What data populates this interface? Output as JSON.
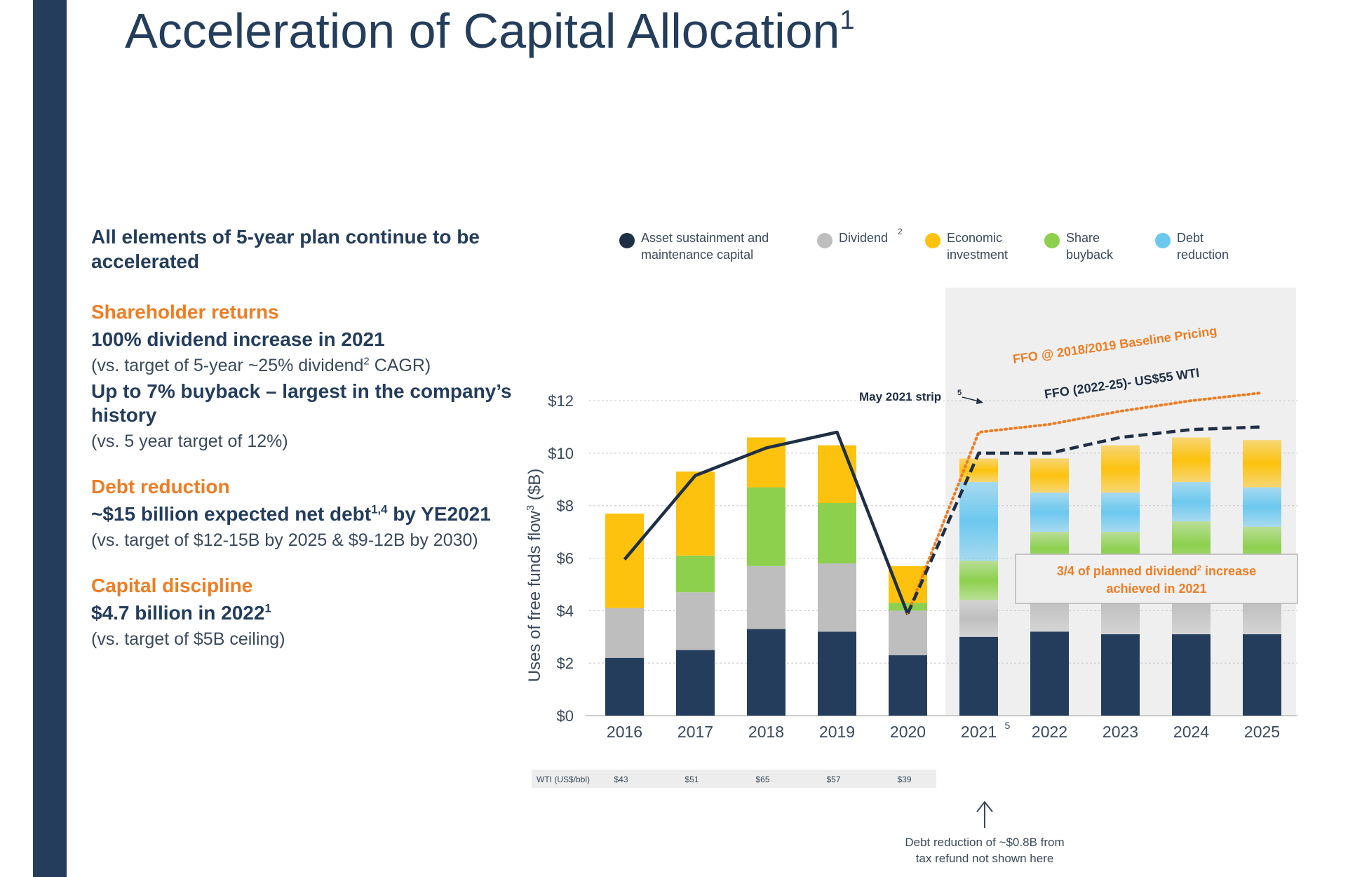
{
  "slide": {
    "title": "Acceleration of Capital Allocation",
    "title_sup": "1"
  },
  "left": {
    "lead": "All elements of 5-year plan continue to be accelerated",
    "sections": [
      {
        "head": "Shareholder returns",
        "lines": [
          {
            "kind": "bold",
            "text": "100% dividend increase in 2021"
          },
          {
            "kind": "note",
            "text": "(vs. target of 5-year ~25% dividend",
            "sup": "2",
            "after": " CAGR)"
          },
          {
            "kind": "bold",
            "text": "Up to 7% buyback – largest in the company’s history"
          },
          {
            "kind": "note",
            "text": "(vs. 5 year target of 12%)"
          }
        ]
      },
      {
        "head": "Debt reduction",
        "lines": [
          {
            "kind": "bold",
            "text": "~$15 billion expected net debt",
            "sup": "1,4",
            "after": " by YE2021"
          },
          {
            "kind": "note",
            "text": "(vs. target of $12-15B by 2025 & $9-12B by 2030)"
          }
        ]
      },
      {
        "head": "Capital discipline",
        "lines": [
          {
            "kind": "bold",
            "text": "$4.7 billion in 2022",
            "sup": "1"
          },
          {
            "kind": "note",
            "text": "(vs. target of $5B ceiling)"
          }
        ]
      }
    ]
  },
  "colors": {
    "navy": "#243d5c",
    "grey": "#bebebe",
    "yellow": "#fdc20e",
    "green": "#8dd04e",
    "blue": "#6cc8ef",
    "orange": "#ee7d24",
    "line": "#1f2f45"
  },
  "chart_data": {
    "type": "bar",
    "stacked": true,
    "ylabel": "Uses of free funds flow",
    "ylabel_sup": "3",
    "ylabel_unit": " ($B)",
    "ylim": [
      0,
      13.5
    ],
    "yticks": [
      0,
      2,
      4,
      6,
      8,
      10,
      12
    ],
    "ytick_labels": [
      "$0",
      "$2",
      "$4",
      "$6",
      "$8",
      "$10",
      "$12"
    ],
    "grid": true,
    "categories": [
      "2016",
      "2017",
      "2018",
      "2019",
      "2020",
      "2021",
      "2022",
      "2023",
      "2024",
      "2025"
    ],
    "category_sups": [
      "",
      "",
      "",
      "",
      "",
      "5",
      "",
      "",
      "",
      ""
    ],
    "forecast_from_index": 5,
    "legend": [
      {
        "key": "navy",
        "label": "Asset sustainment and maintenance capital"
      },
      {
        "key": "grey",
        "label": "Dividend",
        "sup": "2"
      },
      {
        "key": "yellow",
        "label": "Economic investment"
      },
      {
        "key": "green",
        "label": "Share buyback"
      },
      {
        "key": "blue",
        "label": "Debt reduction"
      }
    ],
    "series": [
      {
        "name": "Asset sustainment and maintenance capital",
        "color_key": "navy",
        "values": [
          2.2,
          2.5,
          3.3,
          3.2,
          2.3,
          3.0,
          3.2,
          3.1,
          3.1,
          3.1
        ]
      },
      {
        "name": "Dividend",
        "color_key": "grey",
        "values": [
          1.9,
          2.2,
          2.4,
          2.6,
          1.7,
          1.4,
          2.5,
          2.5,
          2.5,
          2.5
        ]
      },
      {
        "name": "Share buyback",
        "color_key": "green",
        "values": [
          0.0,
          1.4,
          3.0,
          2.3,
          0.3,
          1.5,
          1.3,
          1.4,
          1.8,
          1.6
        ]
      },
      {
        "name": "Debt reduction",
        "color_key": "blue",
        "values": [
          0.0,
          0.0,
          0.0,
          0.0,
          0.0,
          3.0,
          1.5,
          1.5,
          1.5,
          1.5
        ]
      },
      {
        "name": "Economic investment",
        "color_key": "yellow",
        "values": [
          3.6,
          3.2,
          1.9,
          2.2,
          1.4,
          0.9,
          1.3,
          1.8,
          1.7,
          1.8
        ]
      }
    ],
    "line": {
      "x_indices": [
        0,
        1,
        2,
        3,
        4
      ],
      "values": [
        5.95,
        9.15,
        10.2,
        10.8,
        3.85
      ]
    },
    "ffo_baseline": {
      "label": "FFO @ 2018/2019 Baseline Pricing",
      "from_index": 4,
      "values": [
        3.9,
        10.8,
        11.1,
        11.6,
        12.0,
        12.3
      ]
    },
    "ffo_wti": {
      "label": "FFO (2022-25)- US$55 WTI",
      "from_index": 4,
      "values": [
        3.9,
        10.0,
        10.0,
        10.6,
        10.9,
        11.0
      ]
    },
    "strip_label": "May 2021 strip",
    "strip_sup": "5",
    "callout": {
      "line1": "3/4 of planned dividend",
      "sup": "2",
      "line1b": " increase",
      "line2": "achieved in 2021"
    },
    "wti": {
      "label": "WTI (US$/bbl)",
      "values": [
        "$43",
        "$51",
        "$65",
        "$57",
        "$39"
      ]
    },
    "footnote": {
      "line1": "Debt reduction of ~$0.8B from",
      "line2": "tax refund not shown here"
    }
  }
}
